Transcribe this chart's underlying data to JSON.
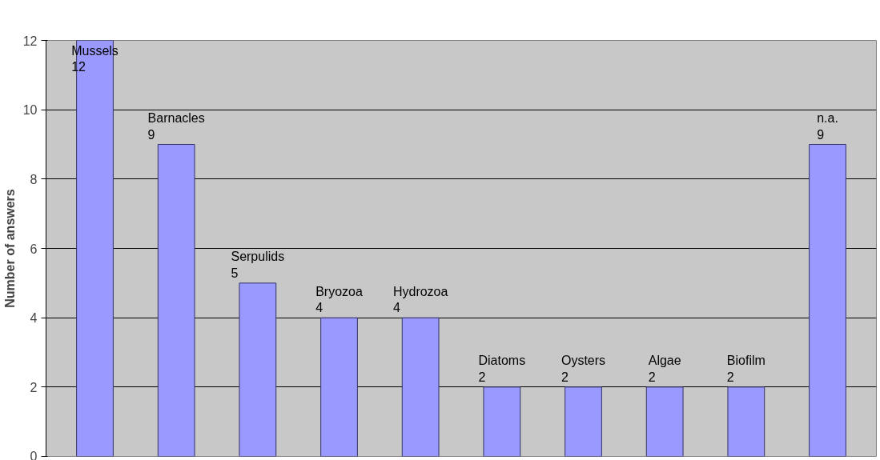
{
  "chart_data": {
    "type": "bar",
    "ylabel": "Number of answers",
    "categories": [
      "Mussels",
      "Barnacles",
      "Serpulids",
      "Bryozoa",
      "Hydrozoa",
      "Diatoms",
      "Oysters",
      "Algae",
      "Biofilm",
      "n.a."
    ],
    "values": [
      12,
      9,
      5,
      4,
      4,
      2,
      2,
      2,
      2,
      9
    ],
    "color": "#9999ff",
    "ylim": [
      0,
      12
    ],
    "yticks": [
      0,
      2,
      4,
      6,
      8,
      10,
      12
    ],
    "grid": "y",
    "data_labels": true
  }
}
